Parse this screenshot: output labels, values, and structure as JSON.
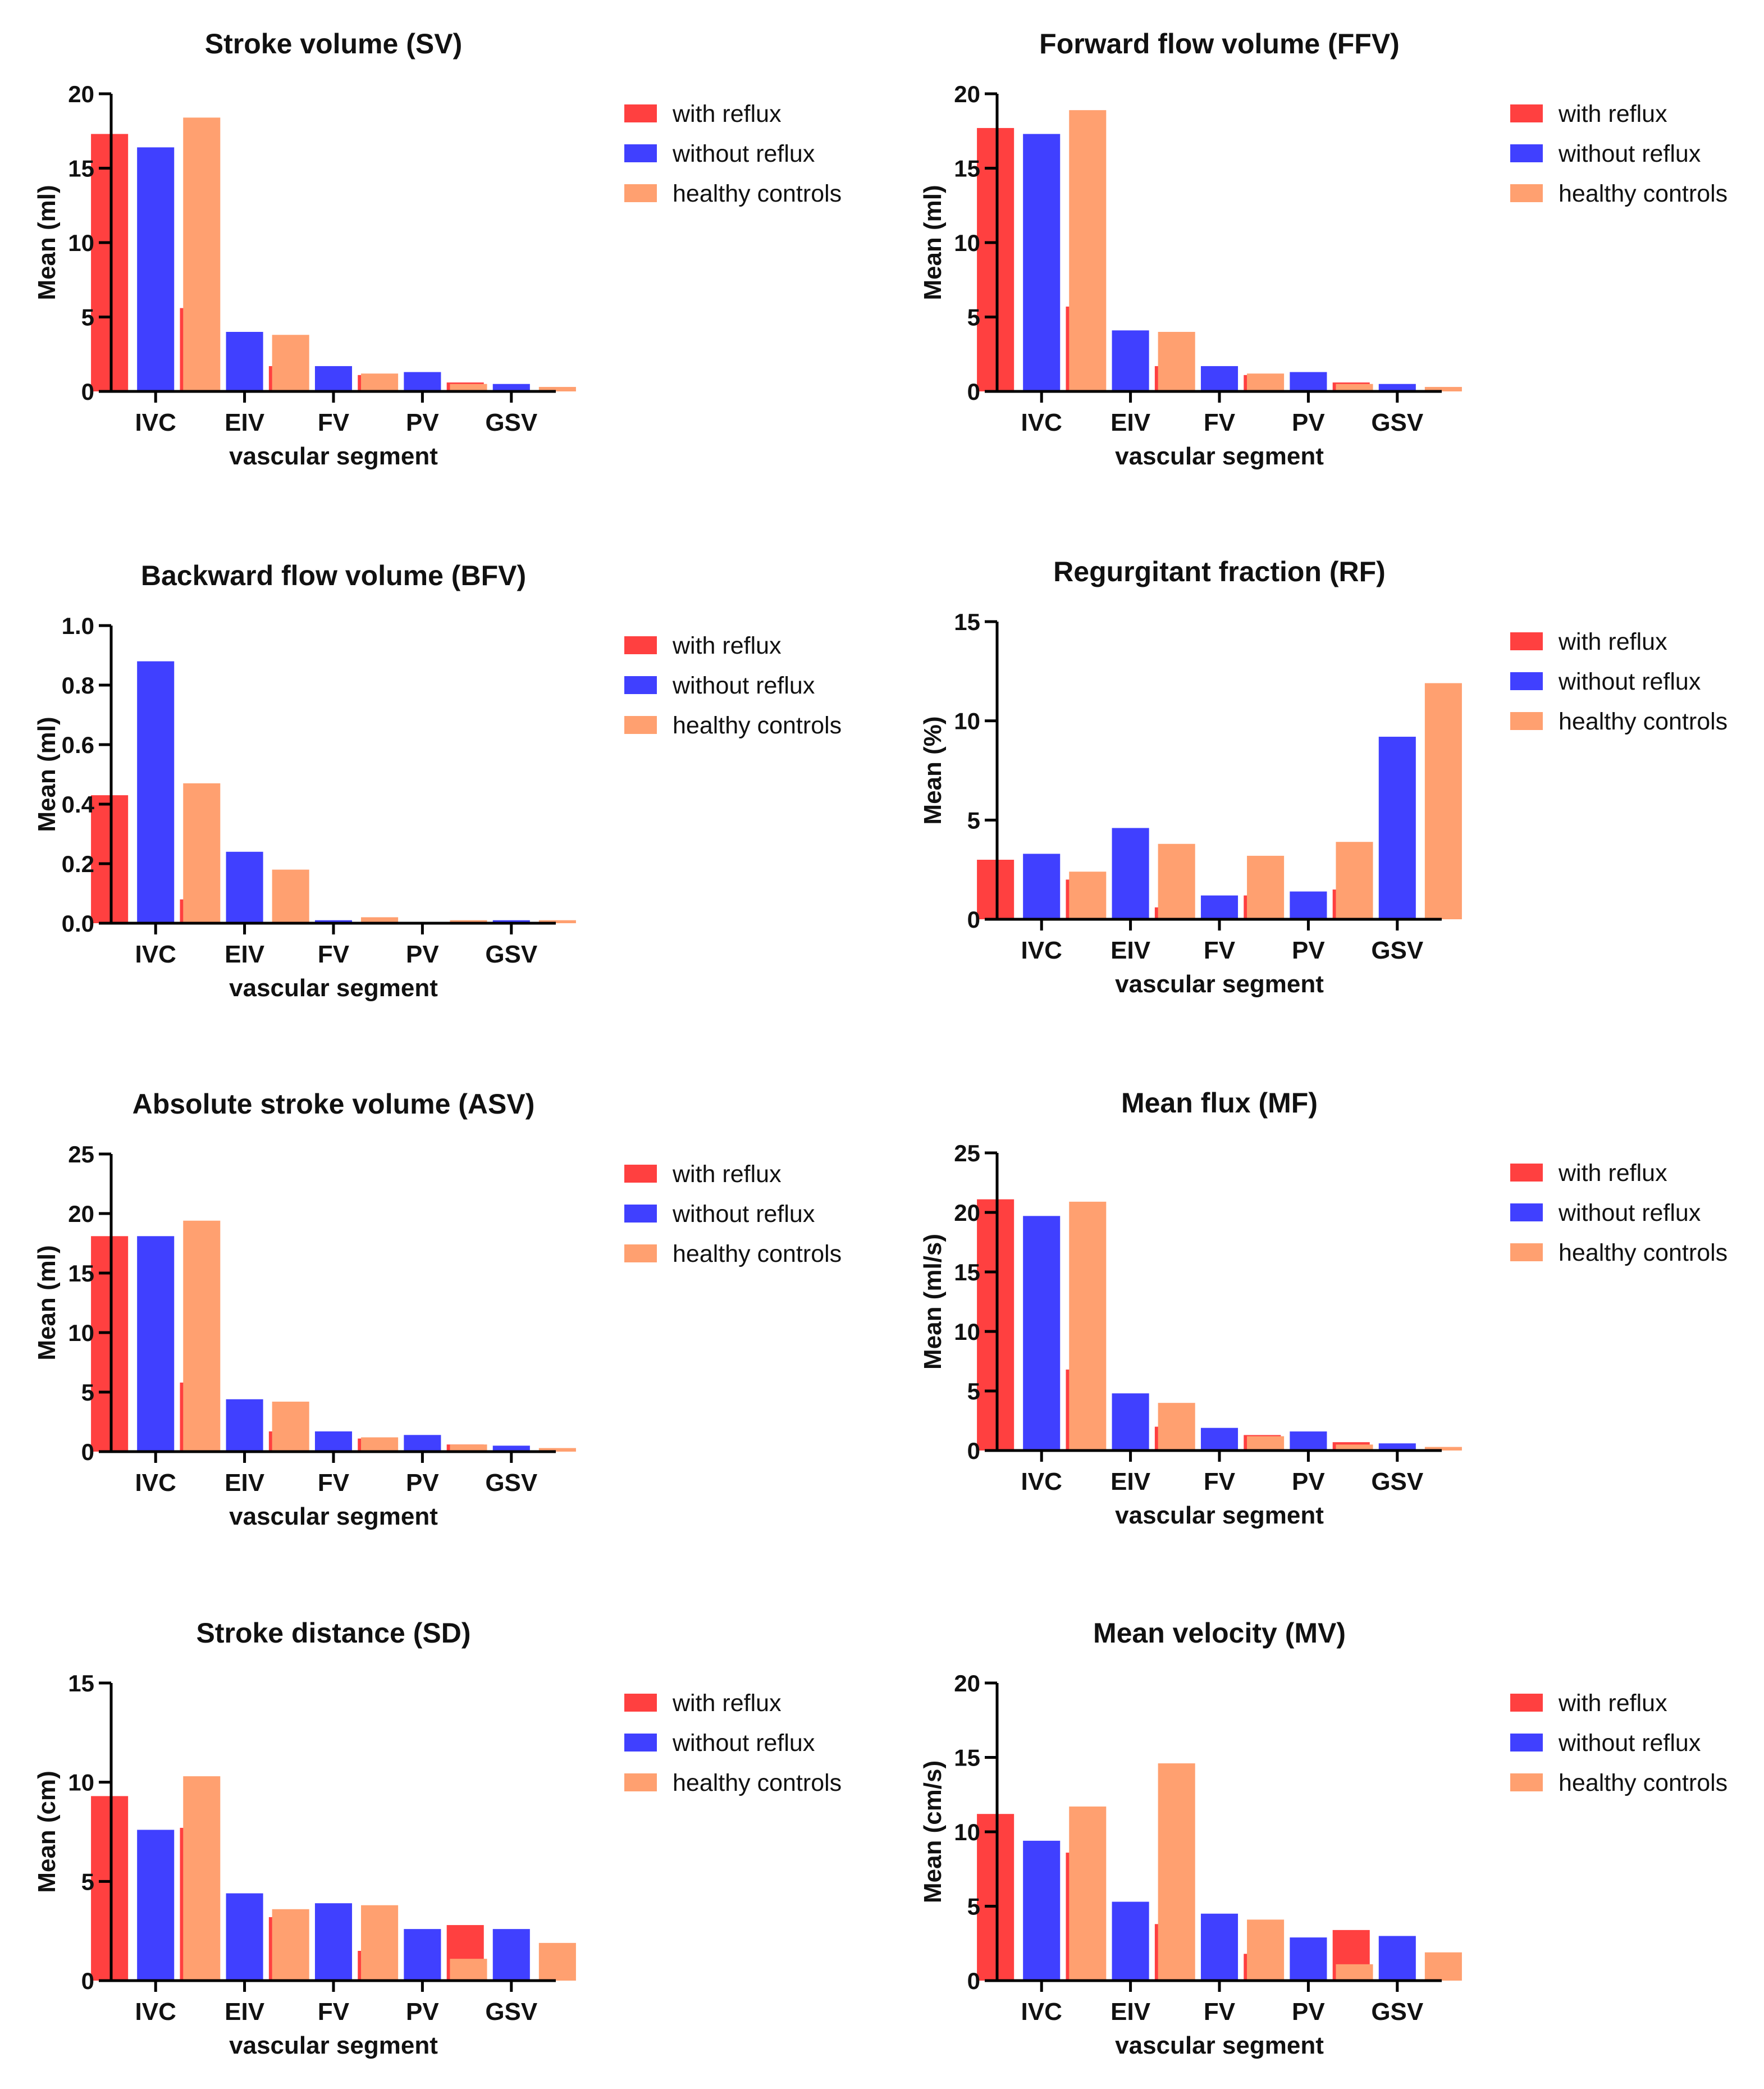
{
  "series_names": [
    "with reflux",
    "without reflux",
    "healthy controls"
  ],
  "series_colors": [
    "#ff4040",
    "#4040ff",
    "#ffa070"
  ],
  "chart_data": [
    {
      "type": "bar",
      "title": "Stroke volume (SV)",
      "xlabel": "vascular segment",
      "ylabel": "Mean (ml)",
      "categories": [
        "IVC",
        "EIV",
        "FV",
        "PV",
        "GSV"
      ],
      "ylim": [
        0,
        20
      ],
      "yticks": [
        "0",
        "5",
        "10",
        "15",
        "20"
      ],
      "legend_position": "top-right",
      "series": [
        {
          "name": "with reflux",
          "values": [
            17.3,
            5.6,
            1.7,
            1.1,
            0.6
          ]
        },
        {
          "name": "without reflux",
          "values": [
            16.4,
            4.0,
            1.7,
            1.3,
            0.5
          ]
        },
        {
          "name": "healthy controls",
          "values": [
            18.4,
            3.8,
            1.2,
            0.5,
            0.3
          ]
        }
      ]
    },
    {
      "type": "bar",
      "title": "Forward flow volume (FFV)",
      "xlabel": "vascular segment",
      "ylabel": "Mean (ml)",
      "categories": [
        "IVC",
        "EIV",
        "FV",
        "PV",
        "GSV"
      ],
      "ylim": [
        0,
        20
      ],
      "yticks": [
        "0",
        "5",
        "10",
        "15",
        "20"
      ],
      "legend_position": "top-right",
      "series": [
        {
          "name": "with reflux",
          "values": [
            17.7,
            5.7,
            1.7,
            1.1,
            0.6
          ]
        },
        {
          "name": "without reflux",
          "values": [
            17.3,
            4.1,
            1.7,
            1.3,
            0.5
          ]
        },
        {
          "name": "healthy controls",
          "values": [
            18.9,
            4.0,
            1.2,
            0.5,
            0.3
          ]
        }
      ]
    },
    {
      "type": "bar",
      "title": "Backward flow volume (BFV)",
      "xlabel": "vascular segment",
      "ylabel": "Mean (ml)",
      "categories": [
        "IVC",
        "EIV",
        "FV",
        "PV",
        "GSV"
      ],
      "ylim": [
        0,
        1.0
      ],
      "yticks": [
        "0.0",
        "0.2",
        "0.4",
        "0.6",
        "0.8",
        "1.0"
      ],
      "legend_position": "top-right",
      "series": [
        {
          "name": "with reflux",
          "values": [
            0.43,
            0.08,
            0.0,
            0.0,
            0.0
          ]
        },
        {
          "name": "without reflux",
          "values": [
            0.88,
            0.24,
            0.01,
            0.0,
            0.01
          ]
        },
        {
          "name": "healthy controls",
          "values": [
            0.47,
            0.18,
            0.02,
            0.01,
            0.01
          ]
        }
      ]
    },
    {
      "type": "bar",
      "title": "Regurgitant fraction (RF)",
      "xlabel": "vascular segment",
      "ylabel": "Mean (%)",
      "categories": [
        "IVC",
        "EIV",
        "FV",
        "PV",
        "GSV"
      ],
      "ylim": [
        0,
        15
      ],
      "yticks": [
        "0",
        "5",
        "10",
        "15"
      ],
      "legend_position": "top-right",
      "series": [
        {
          "name": "with reflux",
          "values": [
            3.0,
            2.0,
            0.6,
            1.2,
            1.5
          ]
        },
        {
          "name": "without reflux",
          "values": [
            3.3,
            4.6,
            1.2,
            1.4,
            9.2
          ]
        },
        {
          "name": "healthy controls",
          "values": [
            2.4,
            3.8,
            3.2,
            3.9,
            11.9
          ]
        }
      ]
    },
    {
      "type": "bar",
      "title": "Absolute stroke volume (ASV)",
      "xlabel": "vascular segment",
      "ylabel": "Mean (ml)",
      "categories": [
        "IVC",
        "EIV",
        "FV",
        "PV",
        "GSV"
      ],
      "ylim": [
        0,
        25
      ],
      "yticks": [
        "0",
        "5",
        "10",
        "15",
        "20",
        "25"
      ],
      "legend_position": "top-right",
      "series": [
        {
          "name": "with reflux",
          "values": [
            18.1,
            5.8,
            1.7,
            1.1,
            0.6
          ]
        },
        {
          "name": "without reflux",
          "values": [
            18.1,
            4.4,
            1.7,
            1.4,
            0.5
          ]
        },
        {
          "name": "healthy controls",
          "values": [
            19.4,
            4.2,
            1.2,
            0.6,
            0.3
          ]
        }
      ]
    },
    {
      "type": "bar",
      "title": "Mean flux (MF)",
      "xlabel": "vascular segment",
      "ylabel": "Mean (ml/s)",
      "categories": [
        "IVC",
        "EIV",
        "FV",
        "PV",
        "GSV"
      ],
      "ylim": [
        0,
        25
      ],
      "yticks": [
        "0",
        "5",
        "10",
        "15",
        "20",
        "25"
      ],
      "legend_position": "top-right",
      "series": [
        {
          "name": "with reflux",
          "values": [
            21.1,
            6.8,
            2.0,
            1.3,
            0.7
          ]
        },
        {
          "name": "without reflux",
          "values": [
            19.7,
            4.8,
            1.9,
            1.6,
            0.6
          ]
        },
        {
          "name": "healthy controls",
          "values": [
            20.9,
            4.0,
            1.2,
            0.5,
            0.3
          ]
        }
      ]
    },
    {
      "type": "bar",
      "title": "Stroke distance (SD)",
      "xlabel": "vascular segment",
      "ylabel": "Mean (cm)",
      "categories": [
        "IVC",
        "EIV",
        "FV",
        "PV",
        "GSV"
      ],
      "ylim": [
        0,
        15
      ],
      "yticks": [
        "0",
        "5",
        "10",
        "15"
      ],
      "legend_position": "top-right",
      "series": [
        {
          "name": "with reflux",
          "values": [
            9.3,
            7.7,
            3.2,
            1.5,
            2.8
          ]
        },
        {
          "name": "without reflux",
          "values": [
            7.6,
            4.4,
            3.9,
            2.6,
            2.6
          ]
        },
        {
          "name": "healthy controls",
          "values": [
            10.3,
            3.6,
            3.8,
            1.1,
            1.9
          ]
        }
      ]
    },
    {
      "type": "bar",
      "title": "Mean velocity (MV)",
      "xlabel": "vascular segment",
      "ylabel": "Mean (cm/s)",
      "categories": [
        "IVC",
        "EIV",
        "FV",
        "PV",
        "GSV"
      ],
      "ylim": [
        0,
        20
      ],
      "yticks": [
        "0",
        "5",
        "10",
        "15",
        "20"
      ],
      "legend_position": "top-right",
      "series": [
        {
          "name": "with reflux",
          "values": [
            11.2,
            8.6,
            3.8,
            1.8,
            3.4
          ]
        },
        {
          "name": "without reflux",
          "values": [
            9.4,
            5.3,
            4.5,
            2.9,
            3.0
          ]
        },
        {
          "name": "healthy controls",
          "values": [
            11.7,
            14.6,
            4.1,
            1.1,
            1.9
          ]
        }
      ]
    }
  ]
}
